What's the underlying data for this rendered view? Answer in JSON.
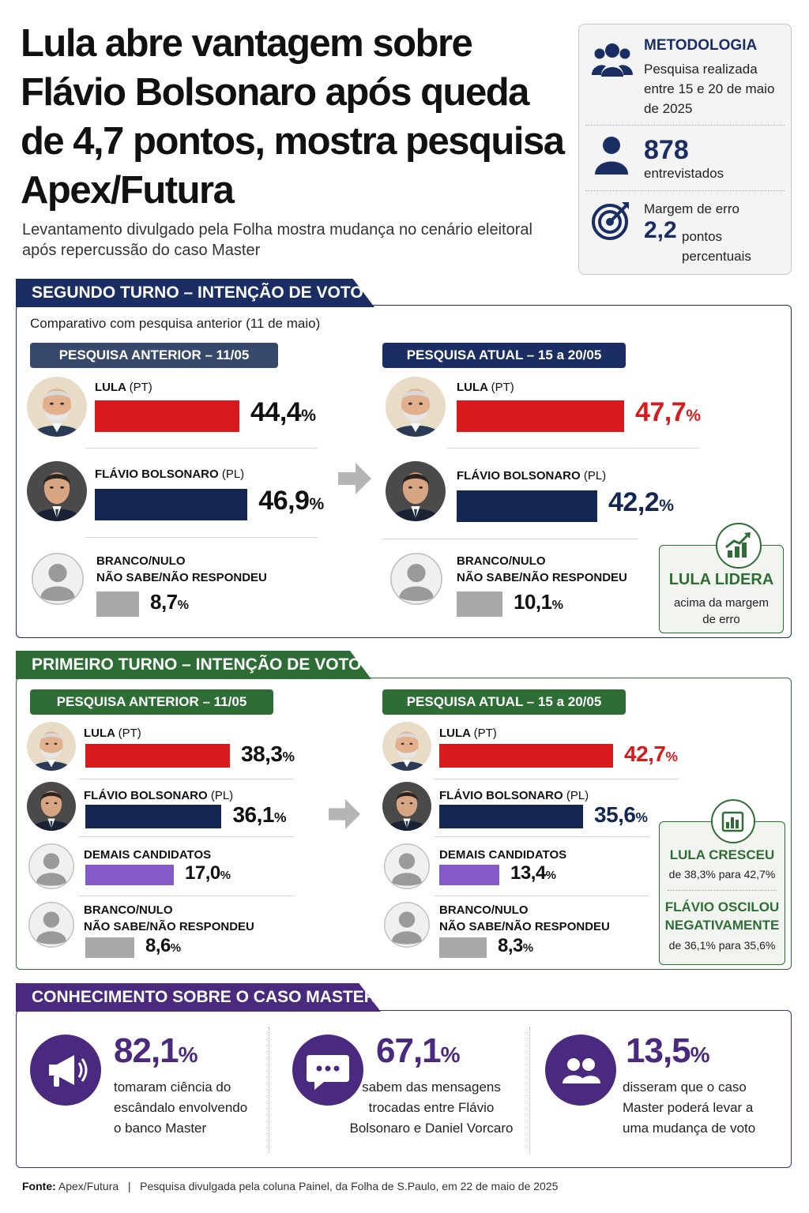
{
  "title": "Lula abre vantagem sobre Flávio Bolsonaro após queda de 4,7 pontos, mostra pesquisa Apex/Futura",
  "subtitle": "Levantamento divulgado pela Folha mostra mudança no cenário eleitoral após repercussão do caso Master",
  "methodology": {
    "heading": "METODOLOGIA",
    "period_text": "Pesquisa realizada entre 15 e 20 de maio de 2025",
    "interviews_value": "878",
    "interviews_label": "entrevistados",
    "margin_label": "Margem de erro",
    "margin_value": "2,2",
    "margin_unit": "pontos percentuais"
  },
  "colors": {
    "lula": "#d91a1c",
    "flavio": "#132752",
    "others": "#8559c7",
    "blank": "#a8a8a8",
    "navy": "#1a2e63",
    "green": "#2e6d36",
    "purple": "#4a2a7e"
  },
  "second_round": {
    "header": "SEGUNDO TURNO – INTENÇÃO DE VOTO",
    "comparison_note": "Comparativo com pesquisa anterior (11 de maio)",
    "prev_label": "PESQUISA ANTERIOR – 11/05",
    "curr_label": "PESQUISA ATUAL – 15 a 20/05",
    "callout_title": "LULA LIDERA",
    "callout_text": "acima da margem de erro"
  },
  "first_round": {
    "header": "PRIMEIRO TURNO – INTENÇÃO DE VOTO",
    "prev_label": "PESQUISA ANTERIOR – 11/05",
    "curr_label": "PESQUISA ATUAL – 15 a 20/05",
    "callout1_title": "LULA CRESCEU",
    "callout1_text": "de 38,3% para 42,7%",
    "callout2_title": "FLÁVIO OSCILOU NEGATIVAMENTE",
    "callout2_text": "de 36,1% para 35,6%"
  },
  "candidates": {
    "lula_name": "LULA",
    "lula_party": "(PT)",
    "flavio_name": "FLÁVIO BOLSONARO",
    "flavio_party": "(PL)",
    "blank_line1": "BRANCO/NULO",
    "blank_line2": "NÃO SABE/NÃO RESPONDEU",
    "others_name": "DEMAIS CANDIDATOS"
  },
  "chart_data": [
    {
      "type": "bar",
      "title": "SEGUNDO TURNO – INTENÇÃO DE VOTO",
      "categories": [
        "LULA (PT)",
        "FLÁVIO BOLSONARO (PL)",
        "BRANCO/NULO NÃO SABE/NÃO RESPONDEU"
      ],
      "series": [
        {
          "name": "PESQUISA ANTERIOR – 11/05",
          "values": [
            44.4,
            46.9,
            8.7
          ],
          "labels": [
            "44,4",
            "46,9",
            "8,7"
          ]
        },
        {
          "name": "PESQUISA ATUAL – 15 a 20/05",
          "values": [
            47.7,
            42.2,
            10.1
          ],
          "labels": [
            "47,7",
            "42,2",
            "10,1"
          ]
        }
      ]
    },
    {
      "type": "bar",
      "title": "PRIMEIRO TURNO – INTENÇÃO DE VOTO",
      "categories": [
        "LULA (PT)",
        "FLÁVIO BOLSONARO (PL)",
        "DEMAIS CANDIDATOS",
        "BRANCO/NULO NÃO SABE/NÃO RESPONDEU"
      ],
      "series": [
        {
          "name": "PESQUISA ANTERIOR – 11/05",
          "values": [
            38.3,
            36.1,
            17.0,
            8.6
          ],
          "labels": [
            "38,3",
            "36,1",
            "17,0",
            "8,6"
          ]
        },
        {
          "name": "PESQUISA ATUAL – 15 a 20/05",
          "values": [
            42.7,
            35.6,
            13.4,
            8.3
          ],
          "labels": [
            "42,7",
            "35,6",
            "13,4",
            "8,3"
          ]
        }
      ]
    }
  ],
  "master": {
    "header": "CONHECIMENTO SOBRE O CASO MASTER",
    "stats": [
      {
        "value": "82,1",
        "text": "tomaram ciência do escândalo envolvendo o banco Master",
        "icon": "megaphone-icon"
      },
      {
        "value": "67,1",
        "text": "sabem das mensagens trocadas entre Flávio Bolsonaro e Daniel Vorcaro",
        "icon": "chat-bubble-icon"
      },
      {
        "value": "13,5",
        "text": "disseram que o caso Master poderá levar a uma mudança de voto",
        "icon": "people-icon"
      }
    ]
  },
  "footer": {
    "source_label": "Fonte:",
    "source_value": "Apex/Futura",
    "note": "Pesquisa divulgada pela coluna Painel, da Folha de S.Paulo, em 22 de maio de 2025"
  },
  "pct_sign": "%"
}
